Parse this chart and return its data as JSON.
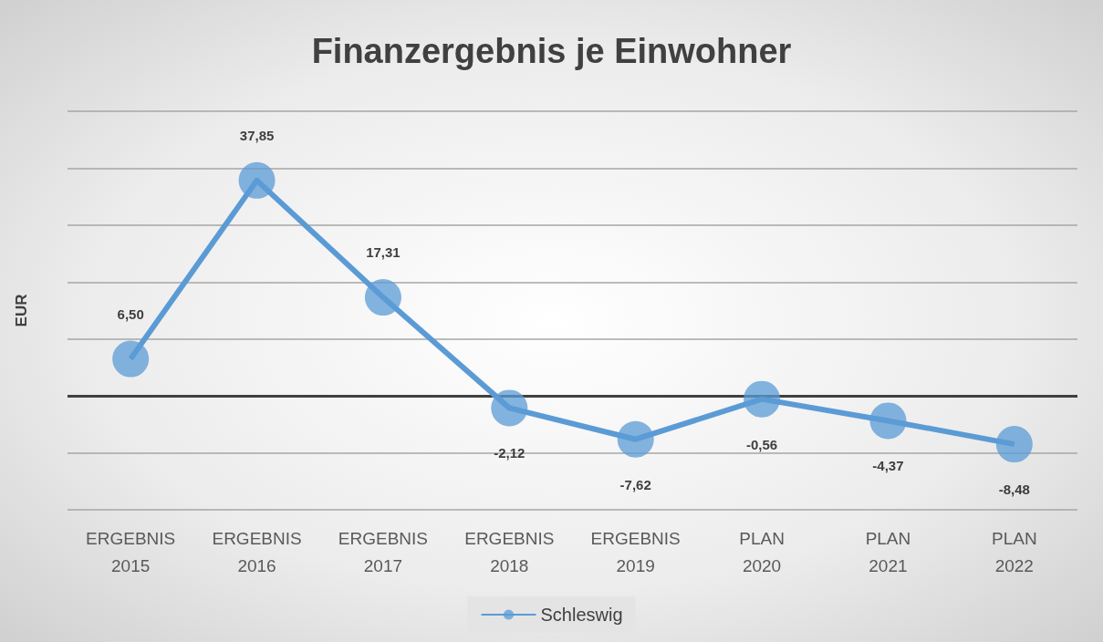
{
  "chart_data": {
    "type": "line",
    "title": "Finanzergebnis je Einwohner",
    "ylabel": "EUR",
    "categories": [
      "ERGEBNIS 2015",
      "ERGEBNIS 2016",
      "ERGEBNIS 2017",
      "ERGEBNIS 2018",
      "ERGEBNIS 2019",
      "PLAN 2020",
      "PLAN 2021",
      "PLAN 2022"
    ],
    "series": [
      {
        "name": "Schleswig",
        "color": "#5b9bd5",
        "values": [
          6.5,
          37.85,
          17.31,
          -2.12,
          -7.62,
          -0.56,
          -4.37,
          -8.48
        ],
        "value_labels": [
          "6,50",
          "37,85",
          "17,31",
          "-2,12",
          "-7,62",
          "-0,56",
          "-4,37",
          "-8,48"
        ]
      }
    ],
    "ylim": [
      -20,
      50
    ],
    "yticks": [
      {
        "value": -20,
        "label": null
      },
      {
        "value": -10,
        "label": null
      },
      {
        "value": 0,
        "label": null
      },
      {
        "value": 10,
        "label": null
      },
      {
        "value": 20,
        "label": null
      },
      {
        "value": 30,
        "label": null
      },
      {
        "value": 40,
        "label": null
      },
      {
        "value": 50,
        "label": null
      }
    ],
    "tick_labels": "x",
    "grid": "y",
    "legend": "bottom",
    "marker": "circle",
    "line_style": "solid",
    "ref_lines": [
      {
        "axis": "y",
        "value": 0,
        "color": "#404040"
      }
    ]
  }
}
